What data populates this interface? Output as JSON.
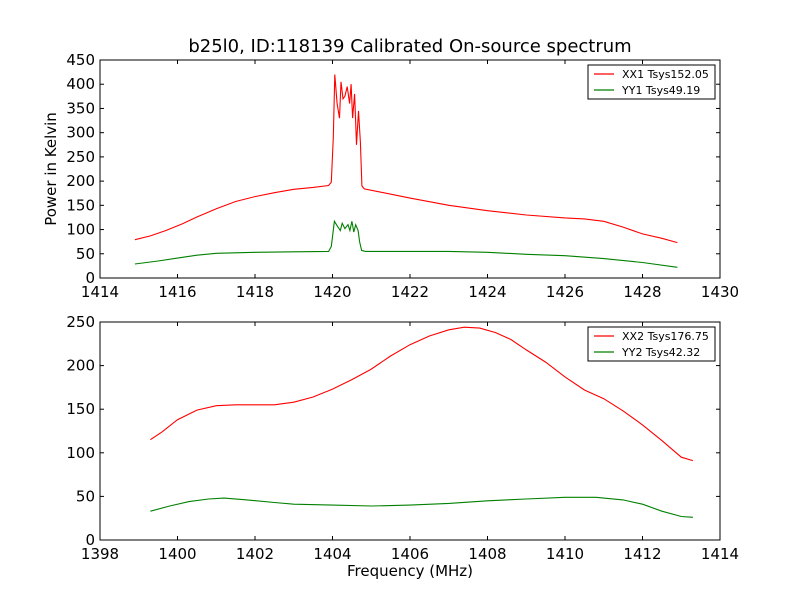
{
  "title": "b25l0, ID:118139 Calibrated On-source spectrum",
  "chart_data": [
    {
      "type": "line",
      "title": "b25l0, ID:118139 Calibrated On-source spectrum",
      "xlabel": "",
      "ylabel": "Power in Kelvin",
      "xlim": [
        1414,
        1430
      ],
      "ylim": [
        0,
        450
      ],
      "xticks": [
        1414,
        1416,
        1418,
        1420,
        1422,
        1424,
        1426,
        1428,
        1430
      ],
      "yticks": [
        0,
        50,
        100,
        150,
        200,
        250,
        300,
        350,
        400,
        450
      ],
      "grid": false,
      "legend": "top-right",
      "series": [
        {
          "name": "XX1 Tsys152.05",
          "color": "#ff0000",
          "points": [
            [
              1414.9,
              79
            ],
            [
              1415.3,
              87
            ],
            [
              1415.7,
              98
            ],
            [
              1416.1,
              111
            ],
            [
              1416.5,
              126
            ],
            [
              1417.0,
              143
            ],
            [
              1417.5,
              158
            ],
            [
              1418.0,
              168
            ],
            [
              1418.5,
              176
            ],
            [
              1419.0,
              183
            ],
            [
              1419.5,
              187
            ],
            [
              1419.9,
              191
            ],
            [
              1419.97,
              198
            ],
            [
              1420.02,
              290
            ],
            [
              1420.06,
              420
            ],
            [
              1420.12,
              360
            ],
            [
              1420.18,
              330
            ],
            [
              1420.22,
              405
            ],
            [
              1420.27,
              370
            ],
            [
              1420.32,
              375
            ],
            [
              1420.38,
              395
            ],
            [
              1420.44,
              360
            ],
            [
              1420.48,
              400
            ],
            [
              1420.52,
              330
            ],
            [
              1420.57,
              380
            ],
            [
              1420.62,
              275
            ],
            [
              1420.67,
              345
            ],
            [
              1420.72,
              280
            ],
            [
              1420.76,
              190
            ],
            [
              1420.82,
              184
            ],
            [
              1421.2,
              178
            ],
            [
              1422.0,
              165
            ],
            [
              1423.0,
              150
            ],
            [
              1424.0,
              139
            ],
            [
              1425.0,
              130
            ],
            [
              1426.0,
              124
            ],
            [
              1426.5,
              122
            ],
            [
              1427.0,
              117
            ],
            [
              1427.5,
              105
            ],
            [
              1428.0,
              91
            ],
            [
              1428.5,
              82
            ],
            [
              1428.9,
              73
            ]
          ]
        },
        {
          "name": "YY1 Tsys49.19",
          "color": "#008000",
          "points": [
            [
              1414.9,
              29
            ],
            [
              1415.5,
              35
            ],
            [
              1416.0,
              41
            ],
            [
              1416.5,
              47
            ],
            [
              1417.0,
              51
            ],
            [
              1418.0,
              53
            ],
            [
              1419.0,
              54
            ],
            [
              1419.9,
              55
            ],
            [
              1419.97,
              65
            ],
            [
              1420.05,
              117
            ],
            [
              1420.12,
              108
            ],
            [
              1420.2,
              98
            ],
            [
              1420.25,
              113
            ],
            [
              1420.32,
              102
            ],
            [
              1420.4,
              110
            ],
            [
              1420.45,
              98
            ],
            [
              1420.5,
              117
            ],
            [
              1420.55,
              95
            ],
            [
              1420.6,
              110
            ],
            [
              1420.66,
              98
            ],
            [
              1420.7,
              75
            ],
            [
              1420.75,
              57
            ],
            [
              1420.85,
              55
            ],
            [
              1422.0,
              55
            ],
            [
              1423.0,
              55
            ],
            [
              1424.0,
              53
            ],
            [
              1425.0,
              49
            ],
            [
              1426.0,
              46
            ],
            [
              1427.0,
              40
            ],
            [
              1428.0,
              32
            ],
            [
              1428.9,
              22
            ]
          ]
        }
      ]
    },
    {
      "type": "line",
      "title": "",
      "xlabel": "Frequency (MHz)",
      "ylabel": "",
      "xlim": [
        1398,
        1414
      ],
      "ylim": [
        0,
        250
      ],
      "xticks": [
        1398,
        1400,
        1402,
        1404,
        1406,
        1408,
        1410,
        1412,
        1414
      ],
      "yticks": [
        0,
        50,
        100,
        150,
        200,
        250
      ],
      "grid": false,
      "legend": "top-right",
      "series": [
        {
          "name": "XX2 Tsys176.75",
          "color": "#ff0000",
          "points": [
            [
              1399.3,
              115
            ],
            [
              1399.6,
              124
            ],
            [
              1400.0,
              138
            ],
            [
              1400.5,
              149
            ],
            [
              1401.0,
              154
            ],
            [
              1401.5,
              155
            ],
            [
              1402.0,
              155
            ],
            [
              1402.5,
              155
            ],
            [
              1403.0,
              158
            ],
            [
              1403.5,
              164
            ],
            [
              1404.0,
              173
            ],
            [
              1404.5,
              184
            ],
            [
              1405.0,
              196
            ],
            [
              1405.5,
              211
            ],
            [
              1406.0,
              224
            ],
            [
              1406.5,
              234
            ],
            [
              1407.0,
              241
            ],
            [
              1407.4,
              244
            ],
            [
              1407.8,
              243
            ],
            [
              1408.2,
              238
            ],
            [
              1408.6,
              230
            ],
            [
              1409.0,
              218
            ],
            [
              1409.5,
              204
            ],
            [
              1410.0,
              187
            ],
            [
              1410.5,
              172
            ],
            [
              1411.0,
              162
            ],
            [
              1411.5,
              148
            ],
            [
              1412.0,
              132
            ],
            [
              1412.5,
              114
            ],
            [
              1413.0,
              95
            ],
            [
              1413.3,
              91
            ]
          ]
        },
        {
          "name": "YY2 Tsys42.32",
          "color": "#008000",
          "points": [
            [
              1399.3,
              33
            ],
            [
              1399.8,
              39
            ],
            [
              1400.3,
              44
            ],
            [
              1400.8,
              47
            ],
            [
              1401.2,
              48
            ],
            [
              1401.8,
              46
            ],
            [
              1402.5,
              43
            ],
            [
              1403.0,
              41
            ],
            [
              1404.0,
              40
            ],
            [
              1405.0,
              39
            ],
            [
              1406.0,
              40
            ],
            [
              1407.0,
              42
            ],
            [
              1408.0,
              45
            ],
            [
              1409.0,
              47
            ],
            [
              1410.0,
              49
            ],
            [
              1410.8,
              49
            ],
            [
              1411.5,
              46
            ],
            [
              1412.0,
              41
            ],
            [
              1412.5,
              33
            ],
            [
              1413.0,
              27
            ],
            [
              1413.3,
              26
            ]
          ]
        }
      ]
    }
  ]
}
